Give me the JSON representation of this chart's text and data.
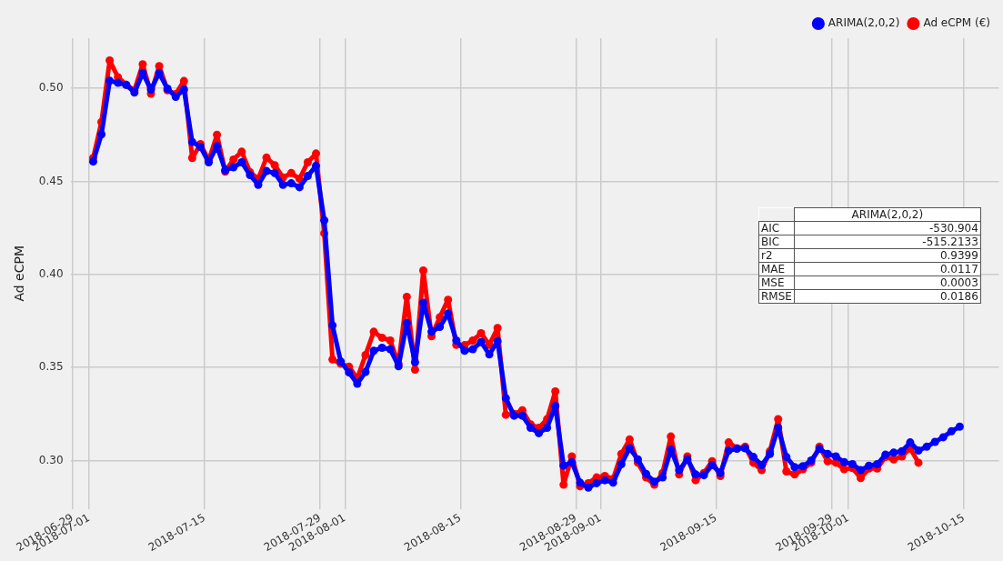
{
  "chart_data": {
    "type": "line",
    "ylabel": "Ad eCPM",
    "x": [
      "2018-07-01T12:00",
      "2018-07-02T12:00",
      "2018-07-03T12:00",
      "2018-07-04T12:00",
      "2018-07-05T12:00",
      "2018-07-06T12:00",
      "2018-07-07T12:00",
      "2018-07-08T12:00",
      "2018-07-09T12:00",
      "2018-07-10T12:00",
      "2018-07-11T12:00",
      "2018-07-12T12:00",
      "2018-07-13T12:00",
      "2018-07-14T12:00",
      "2018-07-15T12:00",
      "2018-07-16T12:00",
      "2018-07-17T12:00",
      "2018-07-18T12:00",
      "2018-07-19T12:00",
      "2018-07-20T12:00",
      "2018-07-21T12:00",
      "2018-07-22T12:00",
      "2018-07-23T12:00",
      "2018-07-24T12:00",
      "2018-07-25T12:00",
      "2018-07-26T12:00",
      "2018-07-27T12:00",
      "2018-07-28T12:00",
      "2018-07-29T12:00",
      "2018-07-30T12:00",
      "2018-07-31T12:00",
      "2018-08-01T12:00",
      "2018-08-02T12:00",
      "2018-08-03T12:00",
      "2018-08-04T12:00",
      "2018-08-05T12:00",
      "2018-08-06T12:00",
      "2018-08-07T12:00",
      "2018-08-08T12:00",
      "2018-08-09T12:00",
      "2018-08-10T12:00",
      "2018-08-11T12:00",
      "2018-08-12T12:00",
      "2018-08-13T12:00",
      "2018-08-14T12:00",
      "2018-08-15T12:00",
      "2018-08-16T12:00",
      "2018-08-17T12:00",
      "2018-08-18T12:00",
      "2018-08-19T12:00",
      "2018-08-20T12:00",
      "2018-08-21T12:00",
      "2018-08-22T12:00",
      "2018-08-23T12:00",
      "2018-08-24T12:00",
      "2018-08-25T12:00",
      "2018-08-26T12:00",
      "2018-08-27T12:00",
      "2018-08-28T12:00",
      "2018-08-29T12:00",
      "2018-08-30T12:00",
      "2018-08-31T12:00",
      "2018-09-01T12:00",
      "2018-09-02T12:00",
      "2018-09-03T12:00",
      "2018-09-04T12:00",
      "2018-09-05T12:00",
      "2018-09-06T12:00",
      "2018-09-07T12:00",
      "2018-09-08T12:00",
      "2018-09-09T12:00",
      "2018-09-10T12:00",
      "2018-09-11T12:00",
      "2018-09-12T12:00",
      "2018-09-13T12:00",
      "2018-09-14T12:00",
      "2018-09-15T12:00",
      "2018-09-16T12:00",
      "2018-09-17T12:00",
      "2018-09-18T12:00",
      "2018-09-19T12:00",
      "2018-09-20T12:00",
      "2018-09-21T12:00",
      "2018-09-22T12:00",
      "2018-09-23T12:00",
      "2018-09-24T12:00",
      "2018-09-25T12:00",
      "2018-09-26T12:00",
      "2018-09-27T12:00",
      "2018-09-28T12:00",
      "2018-09-29T12:00",
      "2018-09-30T12:00",
      "2018-10-01T12:00",
      "2018-10-02T12:00",
      "2018-10-03T12:00",
      "2018-10-04T12:00",
      "2018-10-05T12:00",
      "2018-10-06T12:00",
      "2018-10-07T12:00",
      "2018-10-08T12:00",
      "2018-10-09T12:00",
      "2018-10-10T12:00",
      "2018-10-11T12:00",
      "2018-10-12T12:00",
      "2018-10-13T12:00",
      "2018-10-14T12:00"
    ],
    "series": [
      {
        "name": "Ad eCPM (€)",
        "color": "#ff0000",
        "values": [
          0.4626,
          0.4819,
          0.515,
          0.506,
          0.502,
          0.499,
          0.513,
          0.4972,
          0.512,
          0.499,
          0.497,
          0.504,
          0.4626,
          0.4701,
          0.4613,
          0.4751,
          0.4553,
          0.4618,
          0.466,
          0.455,
          0.4514,
          0.4628,
          0.4587,
          0.4521,
          0.4545,
          0.4514,
          0.4603,
          0.465,
          0.4221,
          0.3543,
          0.352,
          0.3504,
          0.3441,
          0.3567,
          0.3692,
          0.366,
          0.3645,
          0.352,
          0.388,
          0.3488,
          0.4021,
          0.3668,
          0.377,
          0.3864,
          0.3622,
          0.362,
          0.3645,
          0.3684,
          0.3622,
          0.3712,
          0.3246,
          0.325,
          0.327,
          0.3194,
          0.3176,
          0.3222,
          0.3371,
          0.287,
          0.3022,
          0.2862,
          0.2878,
          0.2909,
          0.2917,
          0.2901,
          0.3035,
          0.3113,
          0.2988,
          0.2909,
          0.287,
          0.2933,
          0.3129,
          0.2925,
          0.3022,
          0.2894,
          0.2933,
          0.2996,
          0.2917,
          0.3097,
          0.3066,
          0.3074,
          0.2988,
          0.2948,
          0.305,
          0.3222,
          0.2941,
          0.2925,
          0.2953,
          0.2988,
          0.3074,
          0.2996,
          0.2988,
          0.2953,
          0.2959,
          0.2906,
          0.2957,
          0.2957,
          0.3019,
          0.3006,
          0.3022,
          0.3066,
          0.2988,
          null,
          null,
          null,
          null,
          null
        ]
      },
      {
        "name": "ARIMA(2,0,2)",
        "color": "#0000ff",
        "values": [
          0.4607,
          0.4753,
          0.5041,
          0.503,
          0.5019,
          0.4978,
          0.5082,
          0.4994,
          0.5082,
          0.4999,
          0.4955,
          0.4994,
          0.4712,
          0.4686,
          0.4603,
          0.469,
          0.456,
          0.4576,
          0.4603,
          0.4534,
          0.4482,
          0.4556,
          0.4545,
          0.4482,
          0.449,
          0.4469,
          0.4529,
          0.4584,
          0.4291,
          0.3726,
          0.3532,
          0.3473,
          0.3413,
          0.3476,
          0.359,
          0.3606,
          0.3598,
          0.3507,
          0.3739,
          0.3528,
          0.3848,
          0.3692,
          0.3718,
          0.3789,
          0.3645,
          0.359,
          0.3598,
          0.3637,
          0.357,
          0.3642,
          0.3335,
          0.3241,
          0.3241,
          0.3176,
          0.3147,
          0.3176,
          0.3293,
          0.2972,
          0.2991,
          0.2881,
          0.2854,
          0.2878,
          0.2894,
          0.2881,
          0.298,
          0.3066,
          0.3006,
          0.2928,
          0.2886,
          0.2909,
          0.3058,
          0.2948,
          0.3006,
          0.2925,
          0.2921,
          0.2975,
          0.2933,
          0.3053,
          0.3063,
          0.3066,
          0.3019,
          0.2975,
          0.3035,
          0.3176,
          0.3019,
          0.2964,
          0.2969,
          0.3,
          0.3063,
          0.3035,
          0.3022,
          0.2991,
          0.298,
          0.2948,
          0.2972,
          0.298,
          0.3031,
          0.3042,
          0.305,
          0.3097,
          0.3053,
          0.3074,
          0.31,
          0.3125,
          0.3157,
          0.3182
        ]
      }
    ],
    "xlim": [
      "2018-06-28T18:00",
      "2018-10-19T06:00"
    ],
    "xticks": [
      "2018-06-29",
      "2018-07-01",
      "2018-07-15",
      "2018-07-29",
      "2018-08-01",
      "2018-08-15",
      "2018-08-29",
      "2018-09-01",
      "2018-09-15",
      "2018-09-29",
      "2018-10-01",
      "2018-10-15"
    ],
    "ylim": [
      0.274,
      0.527
    ],
    "yticks": [
      {
        "value": 0.3,
        "label": "0.30"
      },
      {
        "value": 0.35,
        "label": "0.35"
      },
      {
        "value": 0.4,
        "label": "0.40"
      },
      {
        "value": 0.45,
        "label": "0.45"
      },
      {
        "value": 0.5,
        "label": "0.50"
      }
    ],
    "annotations": [
      "ARIMA(2,0,2)",
      "AIC",
      "-530.904",
      "BIC",
      "-515.2133",
      "r2",
      "0.9399",
      "MAE",
      "0.0117",
      "MSE",
      "0.0003",
      "RMSE",
      "0.0186"
    ],
    "grid": true,
    "legend": "top right",
    "marker": "circle",
    "line_style": "solid"
  }
}
